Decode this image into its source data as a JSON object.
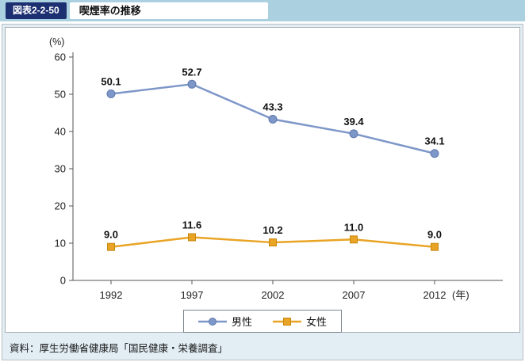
{
  "header": {
    "figure_label": "図表2-2-50",
    "title": "喫煙率の推移"
  },
  "chart_data": {
    "type": "line",
    "title": "喫煙率の推移",
    "categories": [
      "1992",
      "1997",
      "2002",
      "2007",
      "2012"
    ],
    "x_axis_suffix": "(年)",
    "y_unit_label": "(%)",
    "ylim": [
      0,
      60
    ],
    "y_ticks": [
      0,
      10,
      20,
      30,
      40,
      50,
      60
    ],
    "grid": false,
    "legend_position": "bottom",
    "series": [
      {
        "key": "male",
        "name": "男性",
        "values": [
          50.1,
          52.7,
          43.3,
          39.4,
          34.1
        ],
        "color": "#7e97c9",
        "edge_color": "#6079ae",
        "marker": "circle"
      },
      {
        "key": "female",
        "name": "女性",
        "values": [
          9.0,
          11.6,
          10.2,
          11.0,
          9.0
        ],
        "color": "#e9a425",
        "edge_color": "#c8880f",
        "marker": "square"
      }
    ]
  },
  "footer": {
    "source": "資料：厚生労働省健康局「国民健康・栄養調査」"
  }
}
